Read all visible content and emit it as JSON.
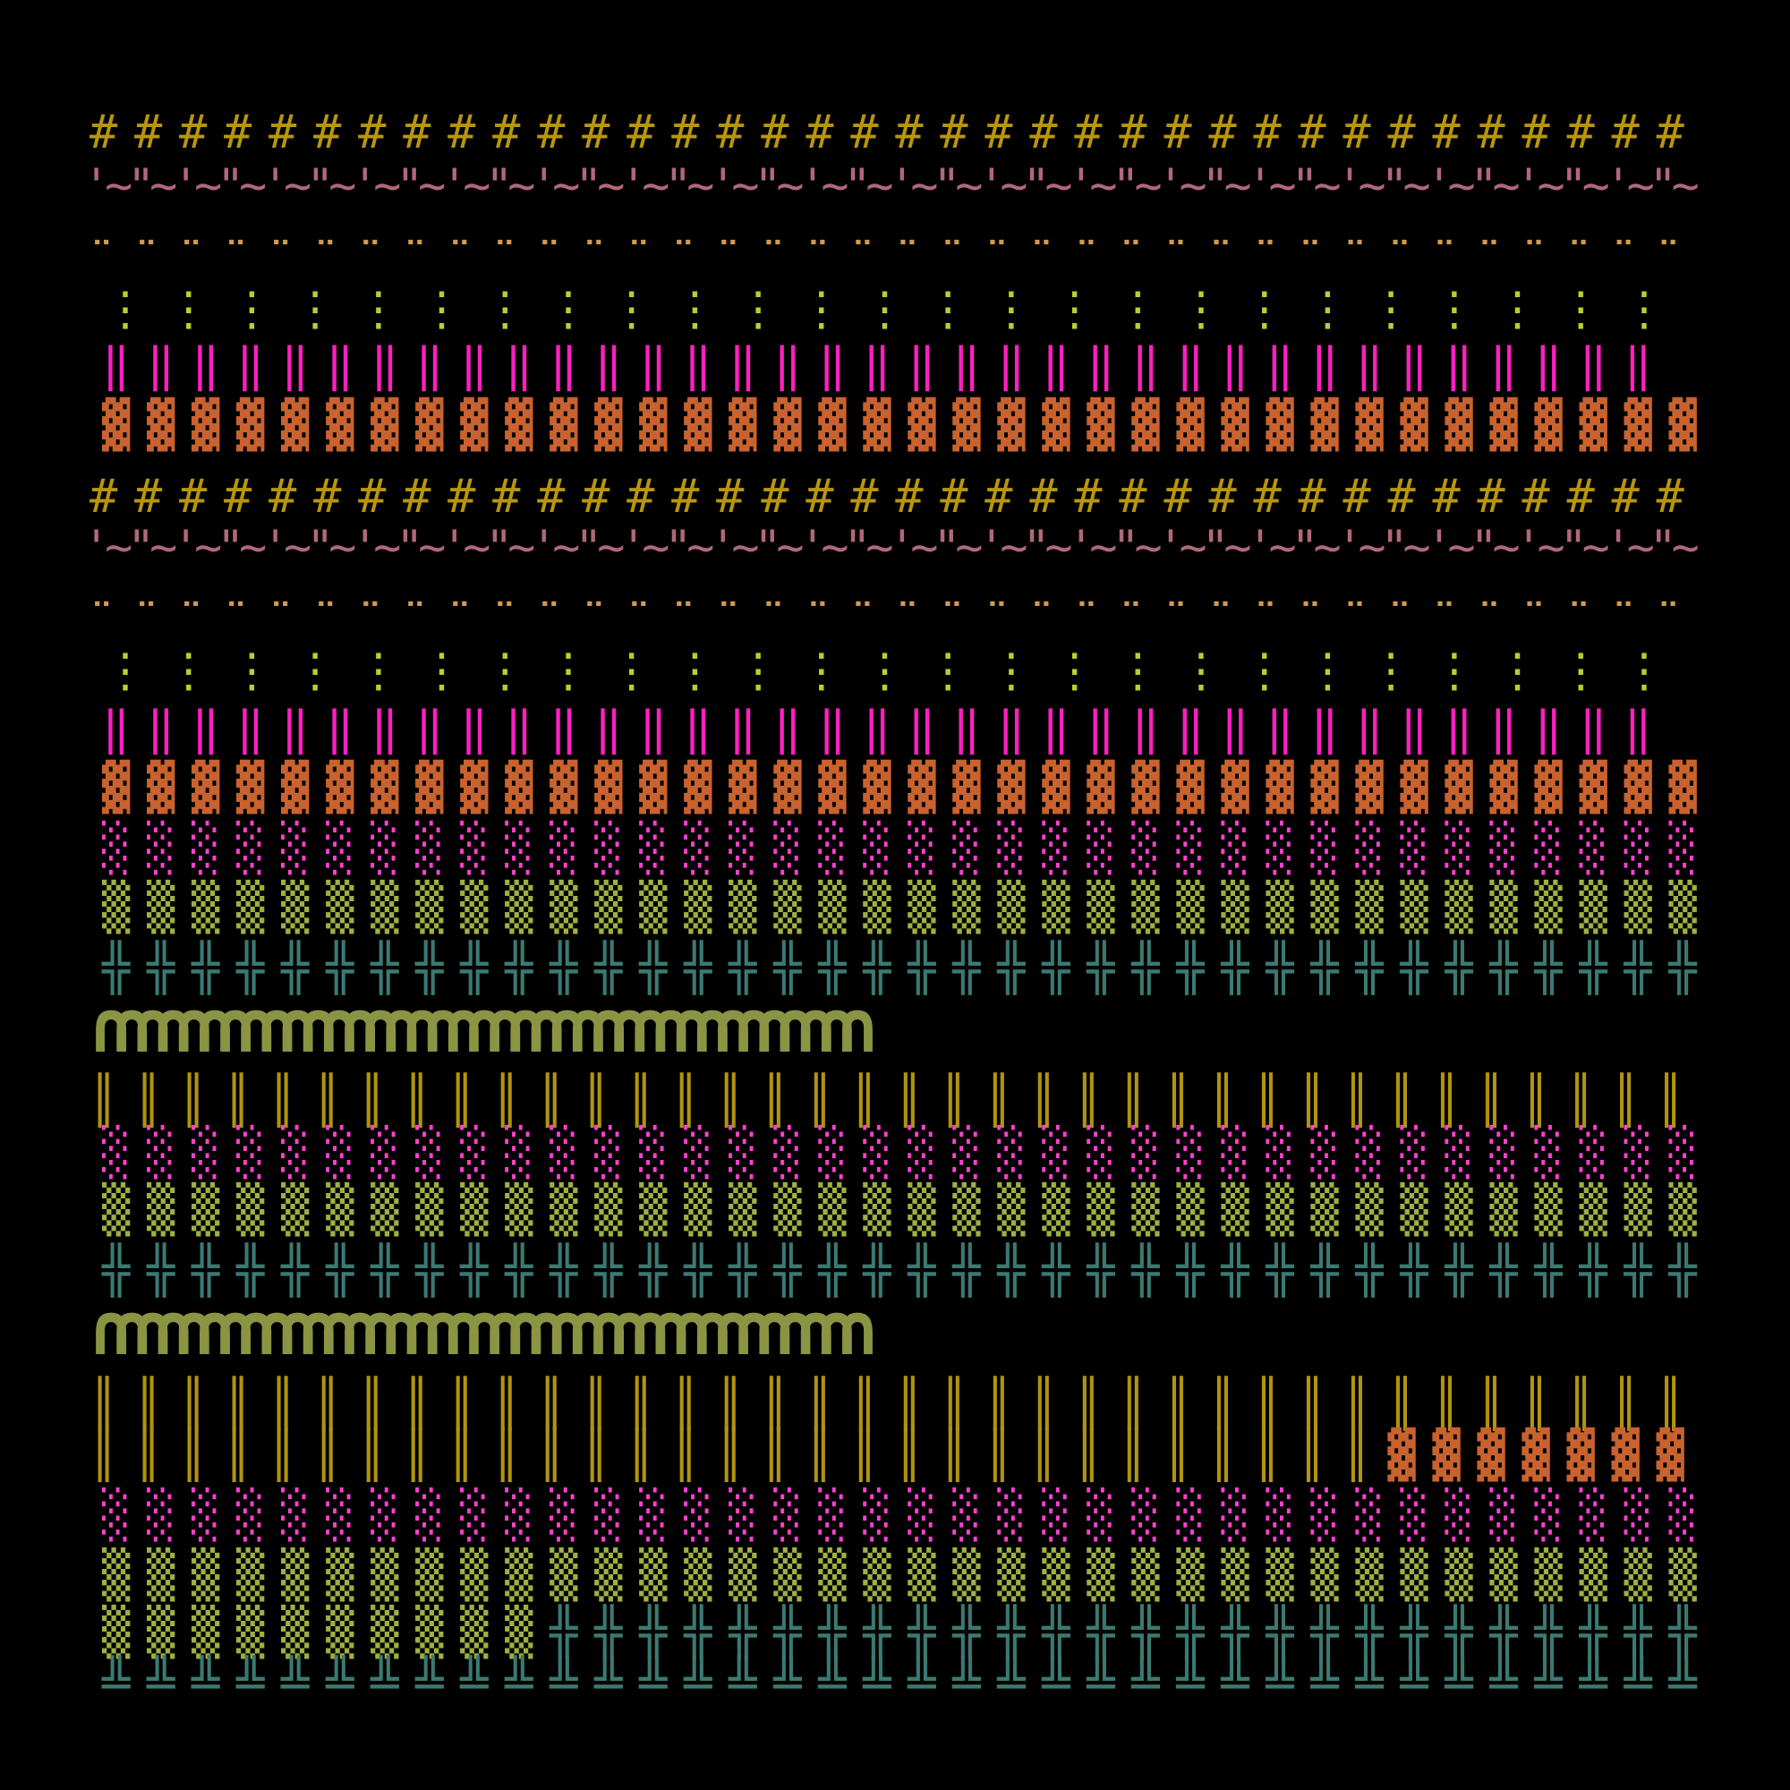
{
  "artwork": {
    "background": "#000000",
    "rows": [
      {
        "name": "hash-row",
        "segments": [
          {
            "text": "# # # # # # # # # # # # # # # # # # # # # # # # # # # # # # # # # # # # ",
            "color": "#b8960c"
          }
        ]
      },
      {
        "name": "wave-row",
        "segments": [
          {
            "text": "'~\"~'~\"~'~\"~'~\"~'~\"~'~\"~'~\"~'~\"~'~\"~'~\"~'~\"~'~\"~'~\"~'~\"~'~\"~'~\"~'~\"~'~\"~",
            "color": "#b0687a"
          }
        ]
      },
      {
        "name": "diaeresis-row",
        "segments": [
          {
            "text": "¨ ¨ ¨ ¨ ¨ ¨ ¨ ¨ ¨ ¨ ¨ ¨ ¨ ¨ ¨ ¨ ¨ ¨ ¨ ¨ ¨ ¨ ¨ ¨ ¨ ¨ ¨ ¨ ¨ ¨ ¨ ¨ ¨ ¨ ¨ ¨ ",
            "color": "#d09a50"
          }
        ]
      },
      {
        "name": "vertical-ellipsis-row",
        "segments": [
          {
            "text": "⋮ ⋮ ⋮ ⋮ ⋮ ⋮ ⋮ ⋮ ⋮ ⋮ ⋮ ⋮ ⋮ ⋮ ⋮ ⋮ ⋮ ⋮ ⋮ ⋮ ⋮ ⋮ ⋮ ⋮ ⋮ ⋮ ⋮ ⋮ ⋮ ⋮ ⋮ ⋮ ⋮ ⋮ ⋮ ",
            "color": "#b8d030"
          }
        ]
      },
      {
        "name": "double-bar-row",
        "segments": [
          {
            "text": "‖ ‖ ‖ ‖ ‖ ‖ ‖ ‖ ‖ ‖ ‖ ‖ ‖ ‖ ‖ ‖ ‖ ‖ ‖ ‖ ‖ ‖ ‖ ‖ ‖ ‖ ‖ ‖ ‖ ‖ ‖ ‖ ‖ ‖ ‖ ",
            "color": "#ff20c0"
          }
        ]
      },
      {
        "name": "dark-shade-row",
        "segments": [
          {
            "text": "▓ ▓ ▓ ▓ ▓ ▓ ▓ ▓ ▓ ▓ ▓ ▓ ▓ ▓ ▓ ▓ ▓ ▓ ▓ ▓ ▓ ▓ ▓ ▓ ▓ ▓ ▓ ▓ ▓ ▓ ▓ ▓ ▓ ▓ ▓ ▓ ",
            "color": "#c8622e"
          }
        ]
      },
      {
        "name": "hash-row",
        "segments": [
          {
            "text": "# # # # # # # # # # # # # # # # # # # # # # # # # # # # # # # # # # # # ",
            "color": "#b8960c"
          }
        ]
      },
      {
        "name": "wave-row",
        "segments": [
          {
            "text": "'~\"~'~\"~'~\"~'~\"~'~\"~'~\"~'~\"~'~\"~'~\"~'~\"~'~\"~'~\"~'~\"~'~\"~'~\"~'~\"~'~\"~'~\"~",
            "color": "#b0687a"
          }
        ]
      },
      {
        "name": "diaeresis-row",
        "segments": [
          {
            "text": "¨ ¨ ¨ ¨ ¨ ¨ ¨ ¨ ¨ ¨ ¨ ¨ ¨ ¨ ¨ ¨ ¨ ¨ ¨ ¨ ¨ ¨ ¨ ¨ ¨ ¨ ¨ ¨ ¨ ¨ ¨ ¨ ¨ ¨ ¨ ¨ ",
            "color": "#d09a50"
          }
        ]
      },
      {
        "name": "vertical-ellipsis-row",
        "segments": [
          {
            "text": "⋮ ⋮ ⋮ ⋮ ⋮ ⋮ ⋮ ⋮ ⋮ ⋮ ⋮ ⋮ ⋮ ⋮ ⋮ ⋮ ⋮ ⋮ ⋮ ⋮ ⋮ ⋮ ⋮ ⋮ ⋮ ⋮ ⋮ ⋮ ⋮ ⋮ ⋮ ⋮ ⋮ ⋮ ⋮ ",
            "color": "#b8d030"
          }
        ]
      },
      {
        "name": "double-bar-row",
        "segments": [
          {
            "text": "‖ ‖ ‖ ‖ ‖ ‖ ‖ ‖ ‖ ‖ ‖ ‖ ‖ ‖ ‖ ‖ ‖ ‖ ‖ ‖ ‖ ‖ ‖ ‖ ‖ ‖ ‖ ‖ ‖ ‖ ‖ ‖ ‖ ‖ ‖ ",
            "color": "#ff20c0"
          }
        ]
      },
      {
        "name": "dark-shade-row",
        "segments": [
          {
            "text": "▓ ▓ ▓ ▓ ▓ ▓ ▓ ▓ ▓ ▓ ▓ ▓ ▓ ▓ ▓ ▓ ▓ ▓ ▓ ▓ ▓ ▓ ▓ ▓ ▓ ▓ ▓ ▓ ▓ ▓ ▓ ▓ ▓ ▓ ▓ ▓ ",
            "color": "#c8622e"
          }
        ]
      },
      {
        "name": "light-shade-row",
        "segments": [
          {
            "text": "░ ░ ░ ░ ░ ░ ░ ░ ░ ░ ░ ░ ░ ░ ░ ░ ░ ░ ░ ░ ░ ░ ░ ░ ░ ░ ░ ░ ░ ░ ░ ░ ░ ░ ░ ░ ",
            "color": "#ff40d0"
          }
        ]
      },
      {
        "name": "medium-shade-row",
        "segments": [
          {
            "text": "▒ ▒ ▒ ▒ ▒ ▒ ▒ ▒ ▒ ▒ ▒ ▒ ▒ ▒ ▒ ▒ ▒ ▒ ▒ ▒ ▒ ▒ ▒ ▒ ▒ ▒ ▒ ▒ ▒ ▒ ▒ ▒ ▒ ▒ ▒ ▒ ",
            "color": "#a0b040"
          }
        ]
      },
      {
        "name": "double-cross-row",
        "segments": [
          {
            "text": "╬ ╬ ╬ ╬ ╬ ╬ ╬ ╬ ╬ ╬ ╬ ╬ ╬ ╬ ╬ ╬ ╬ ╬ ╬ ╬ ╬ ╬ ╬ ╬ ╬ ╬ ╬ ╬ ╬ ╬ ╬ ╬ ╬ ╬ ╬ ╬ ",
            "color": "#3a7a72"
          }
        ]
      },
      {
        "name": "arch-row",
        "segments": [
          {
            "text": "∩∩∩∩∩∩∩∩∩∩∩∩∩∩∩∩∩∩∩∩∩∩∩∩∩∩∩∩∩∩∩∩∩∩∩∩∩",
            "color": "#8a9442"
          }
        ]
      },
      {
        "name": "double-vertical-row",
        "segments": [
          {
            "text": "║ ║ ║ ║ ║ ║ ║ ║ ║ ║ ║ ║ ║ ║ ║ ║ ║ ║ ║ ║ ║ ║ ║ ║ ║ ║ ║ ║ ║ ║ ║ ║ ║ ║ ║ ║ ",
            "color": "#b0940e"
          }
        ]
      },
      {
        "name": "light-shade-row",
        "segments": [
          {
            "text": "░ ░ ░ ░ ░ ░ ░ ░ ░ ░ ░ ░ ░ ░ ░ ░ ░ ░ ░ ░ ░ ░ ░ ░ ░ ░ ░ ░ ░ ░ ░ ░ ░ ░ ░ ░ ",
            "color": "#ff40d0"
          }
        ]
      },
      {
        "name": "medium-shade-row",
        "segments": [
          {
            "text": "▒ ▒ ▒ ▒ ▒ ▒ ▒ ▒ ▒ ▒ ▒ ▒ ▒ ▒ ▒ ▒ ▒ ▒ ▒ ▒ ▒ ▒ ▒ ▒ ▒ ▒ ▒ ▒ ▒ ▒ ▒ ▒ ▒ ▒ ▒ ▒ ",
            "color": "#a0b040"
          }
        ]
      },
      {
        "name": "double-cross-row",
        "segments": [
          {
            "text": "╬ ╬ ╬ ╬ ╬ ╬ ╬ ╬ ╬ ╬ ╬ ╬ ╬ ╬ ╬ ╬ ╬ ╬ ╬ ╬ ╬ ╬ ╬ ╬ ╬ ╬ ╬ ╬ ╬ ╬ ╬ ╬ ╬ ╬ ╬ ╬ ",
            "color": "#3a7a72"
          }
        ]
      },
      {
        "name": "arch-row",
        "segments": [
          {
            "text": "∩∩∩∩∩∩∩∩∩∩∩∩∩∩∩∩∩∩∩∩∩∩∩∩∩∩∩∩∩∩∩∩∩∩∩∩∩",
            "color": "#8a9442"
          }
        ]
      },
      {
        "name": "double-vertical-row",
        "segments": [
          {
            "text": "║ ║ ║ ║ ║ ║ ║ ║ ║ ║ ║ ║ ║ ║ ║ ║ ║ ║ ║ ║ ║ ║ ║ ║ ║ ║ ║ ║ ║ ║ ║ ║ ║ ║ ║ ║ ",
            "color": "#b0940e"
          }
        ]
      },
      {
        "name": "mixed-vertical-shade-row",
        "segments": [
          {
            "text": "║ ║ ║ ║ ║ ║ ║ ║ ║ ║ ║ ║ ║ ║ ║ ║ ║ ║ ║ ║ ║ ║ ║ ║ ║ ║ ║ ║ ║ ",
            "color": "#b0940e"
          },
          {
            "text": "▓ ▓ ▓ ▓ ▓ ▓ ▓ ▓ ",
            "color": "#c8622e"
          }
        ]
      },
      {
        "name": "light-shade-row",
        "segments": [
          {
            "text": "░ ░ ░ ░ ░ ░ ░ ░ ░ ░ ░ ░ ░ ░ ░ ░ ░ ░ ░ ░ ░ ░ ░ ░ ░ ░ ░ ░ ░ ░ ░ ░ ░ ░ ░ ░ ",
            "color": "#ff40d0"
          }
        ]
      },
      {
        "name": "medium-shade-row",
        "segments": [
          {
            "text": "▒ ▒ ▒ ▒ ▒ ▒ ▒ ▒ ▒ ▒ ▒ ▒ ▒ ▒ ▒ ▒ ▒ ▒ ▒ ▒ ▒ ▒ ▒ ▒ ▒ ▒ ▒ ▒ ▒ ▒ ▒ ▒ ▒ ▒ ▒ ▒ ",
            "color": "#a0b040"
          }
        ]
      },
      {
        "name": "mixed-shade-cross-row",
        "segments": [
          {
            "text": "▒ ▒ ▒ ▒ ▒ ▒ ▒ ▒ ▒ ▒ ",
            "color": "#a0b040"
          },
          {
            "text": "╬ ╬ ╬ ╬ ╬ ╬ ╬ ╬ ╬ ╬ ╬ ╬ ╬ ╬ ╬ ╬ ╬ ╬ ╬ ╬ ╬ ╬ ╬ ╬ ╬ ╬ ",
            "color": "#3a7a72"
          }
        ]
      },
      {
        "name": "double-up-horizontal-row",
        "segments": [
          {
            "text": "╩ ╩ ╩ ╩ ╩ ╩ ╩ ╩ ╩ ╩ ╩ ╩ ╩ ╩ ╩ ╩ ╩ ╩ ╩ ╩ ╩ ╩ ╩ ╩ ╩ ╩ ╩ ╩ ╩ ╩ ╩ ╩ ╩ ╩ ╩ ╩ ",
            "color": "#3a7a72"
          }
        ]
      }
    ]
  }
}
